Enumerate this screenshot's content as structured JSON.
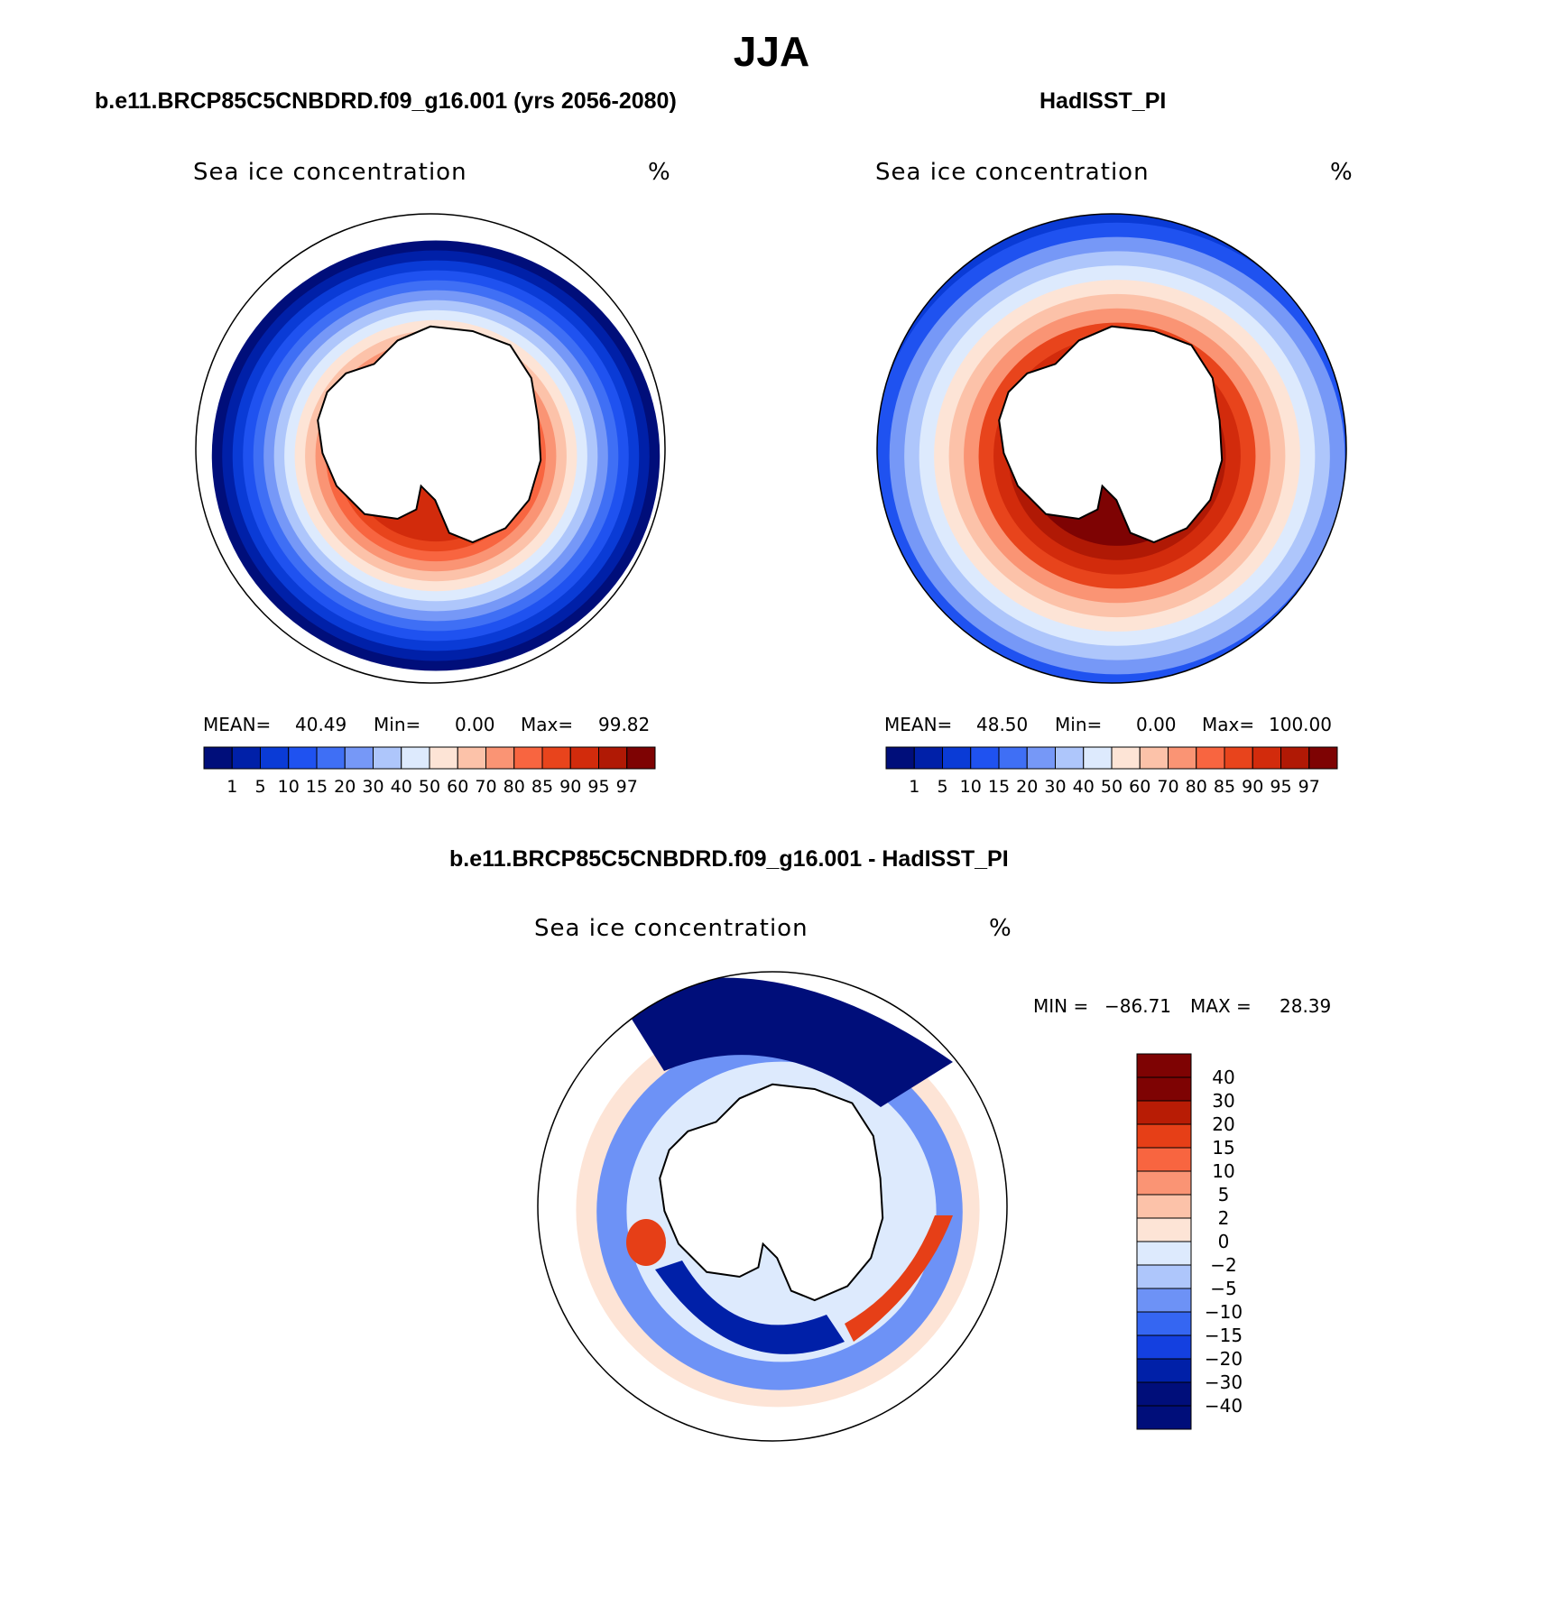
{
  "title": "JJA",
  "colors": {
    "seq": [
      "#000e7a",
      "#0020a8",
      "#0a3bd6",
      "#1f52f0",
      "#3f6ff5",
      "#7698f7",
      "#aec6fb",
      "#ddeafd",
      "#fde4d6",
      "#fcc2a9",
      "#fa9474",
      "#f86540",
      "#e8441c",
      "#d22b0c",
      "#b01905",
      "#7e0303"
    ],
    "diff": [
      "#000e7a",
      "#0020a8",
      "#1440e0",
      "#3566f2",
      "#6d92f6",
      "#aec6fb",
      "#ddeafd",
      "#fde4d6",
      "#fcc2a9",
      "#fa9474",
      "#f86540",
      "#e63f17",
      "#b81c05",
      "#7e0303"
    ],
    "land": "#ffffff",
    "outline": "#000000"
  },
  "panels": {
    "left": {
      "title": "b.e11.BRCP85C5CNBDRD.f09_g16.001 (yrs 2056-2080)",
      "var_label": "Sea ice concentration",
      "unit": "%",
      "mean_label": "MEAN=",
      "mean_value": "40.49",
      "min_label": "Min=",
      "min_value": "0.00",
      "max_label": "Max=",
      "max_value": "99.82"
    },
    "right": {
      "title": "HadISST_PI",
      "var_label": "Sea ice concentration",
      "unit": "%",
      "mean_label": "MEAN=",
      "mean_value": "48.50",
      "min_label": "Min=",
      "min_value": "0.00",
      "max_label": "Max=",
      "max_value": "100.00"
    },
    "diff": {
      "title": "b.e11.BRCP85C5CNBDRD.f09_g16.001 - HadISST_PI",
      "var_label": "Sea ice concentration",
      "unit": "%",
      "min_label": "MIN =",
      "min_value": "−86.71",
      "max_label": "MAX =",
      "max_value": "28.39"
    }
  },
  "chart_data": [
    {
      "type": "heatmap",
      "title": "b.e11.BRCP85C5CNBDRD.f09_g16.001 (yrs 2056-2080)",
      "variable": "Sea ice concentration",
      "units": "%",
      "projection": "south polar stereographic",
      "stats": {
        "mean": 40.49,
        "min": 0.0,
        "max": 99.82
      },
      "contour_levels": [
        1,
        5,
        10,
        15,
        20,
        30,
        40,
        50,
        60,
        70,
        80,
        85,
        90,
        95,
        97
      ],
      "tick_labels": [
        "1",
        "5",
        "10",
        "15",
        "20",
        "30",
        "40",
        "50",
        "60",
        "70",
        "80",
        "85",
        "90",
        "95",
        "97"
      ],
      "field": {
        "inner_edge_deg": 0.28,
        "peak_concentration": 95,
        "ice_edge_deg": 0.48
      }
    },
    {
      "type": "heatmap",
      "title": "HadISST_PI",
      "variable": "Sea ice concentration",
      "units": "%",
      "projection": "south polar stereographic",
      "stats": {
        "mean": 48.5,
        "min": 0.0,
        "max": 100.0
      },
      "contour_levels": [
        1,
        5,
        10,
        15,
        20,
        30,
        40,
        50,
        60,
        70,
        80,
        85,
        90,
        95,
        97
      ],
      "tick_labels": [
        "1",
        "5",
        "10",
        "15",
        "20",
        "30",
        "40",
        "50",
        "60",
        "70",
        "80",
        "85",
        "90",
        "95",
        "97"
      ],
      "field": {
        "inner_edge_deg": 0.28,
        "peak_concentration": 100,
        "ice_edge_deg": 0.62
      }
    },
    {
      "type": "heatmap",
      "title": "b.e11.BRCP85C5CNBDRD.f09_g16.001 - HadISST_PI",
      "variable": "Sea ice concentration",
      "units": "%",
      "projection": "south polar stereographic",
      "stats": {
        "min": -86.71,
        "max": 28.39
      },
      "contour_levels": [
        -40,
        -30,
        -20,
        -15,
        -10,
        -5,
        -2,
        0,
        2,
        5,
        10,
        15,
        20,
        30,
        40
      ],
      "tick_labels": [
        "40",
        "30",
        "20",
        "15",
        "10",
        "5",
        "2",
        "0",
        "−2",
        "−5",
        "−10",
        "−15",
        "−20",
        "−30",
        "−40"
      ]
    }
  ]
}
